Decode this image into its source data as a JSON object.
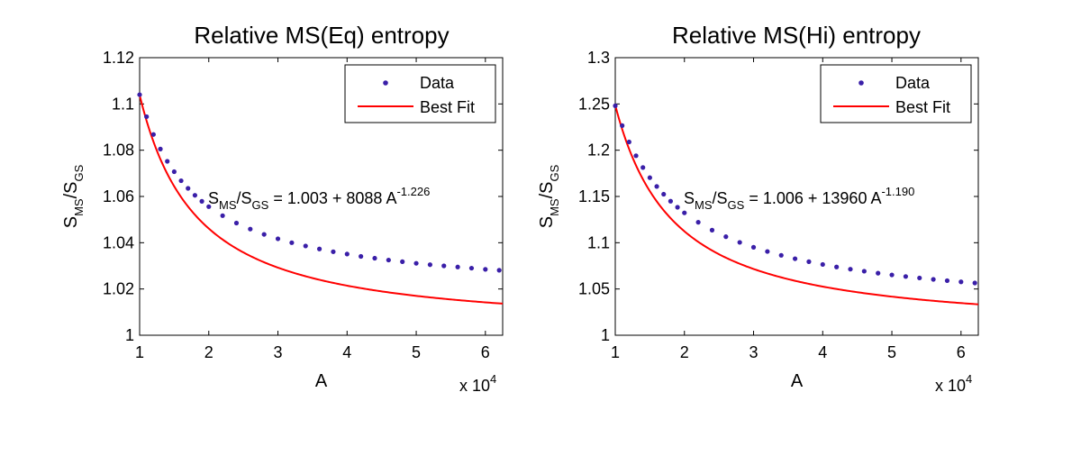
{
  "chart_data": [
    {
      "type": "scatter",
      "title": "Relative MS(Eq) entropy",
      "xlabel": "A",
      "ylabel": {
        "main": "S",
        "sub1": "MS",
        "slash": "/S",
        "sub2": "GS"
      },
      "x_multiplier_label": {
        "base": "x 10",
        "exp": "4"
      },
      "xlim": [
        1,
        6.25
      ],
      "ylim": [
        1,
        1.12
      ],
      "xticks": [
        1,
        2,
        3,
        4,
        5,
        6
      ],
      "xtick_labels": [
        "1",
        "2",
        "3",
        "4",
        "5",
        "6"
      ],
      "yticks": [
        1,
        1.02,
        1.04,
        1.06,
        1.08,
        1.1,
        1.12
      ],
      "ytick_labels": [
        "1",
        "1.02",
        "1.04",
        "1.06",
        "1.08",
        "1.1",
        "1.12"
      ],
      "legend": {
        "position": "top-right",
        "entries": [
          "Data",
          "Best Fit"
        ]
      },
      "annotation": {
        "lhs_s1": "S",
        "lhs_sub1": "MS",
        "lhs_s2": "/S",
        "lhs_sub2": "GS",
        "rhs": " = 1.003 + 8088 A",
        "exp": "-1.226"
      },
      "fit": {
        "c": 1.003,
        "k": 8088,
        "p": -1.226
      },
      "series": [
        {
          "name": "Data",
          "style": "markers",
          "color": "#3a1fa8",
          "x": [
            1.0,
            1.1,
            1.2,
            1.3,
            1.4,
            1.5,
            1.6,
            1.7,
            1.8,
            1.9,
            2.0,
            2.2,
            2.4,
            2.6,
            2.8,
            3.0,
            3.2,
            3.4,
            3.6,
            3.8,
            4.0,
            4.2,
            4.4,
            4.6,
            4.8,
            5.0,
            5.2,
            5.4,
            5.6,
            5.8,
            6.0,
            6.2
          ],
          "y": [
            1.104,
            1.0945,
            1.0868,
            1.0805,
            1.0752,
            1.0707,
            1.0668,
            1.0635,
            1.0605,
            1.0579,
            1.0556,
            1.0517,
            1.0485,
            1.0459,
            1.0436,
            1.0417,
            1.04,
            1.0386,
            1.0373,
            1.0361,
            1.0351,
            1.0341,
            1.0333,
            1.0325,
            1.0318,
            1.0311,
            1.0305,
            1.03,
            1.0295,
            1.029,
            1.0285,
            1.0281
          ]
        },
        {
          "name": "Best Fit",
          "style": "line",
          "color": "#ff0000"
        }
      ]
    },
    {
      "type": "scatter",
      "title": "Relative MS(Hi) entropy",
      "xlabel": "A",
      "ylabel": {
        "main": "S",
        "sub1": "MS",
        "slash": "/S",
        "sub2": "GS"
      },
      "x_multiplier_label": {
        "base": "x 10",
        "exp": "4"
      },
      "xlim": [
        1,
        6.25
      ],
      "ylim": [
        1,
        1.3
      ],
      "xticks": [
        1,
        2,
        3,
        4,
        5,
        6
      ],
      "xtick_labels": [
        "1",
        "2",
        "3",
        "4",
        "5",
        "6"
      ],
      "yticks": [
        1,
        1.05,
        1.1,
        1.15,
        1.2,
        1.25,
        1.3
      ],
      "ytick_labels": [
        "1",
        "1.05",
        "1.1",
        "1.15",
        "1.2",
        "1.25",
        "1.3"
      ],
      "legend": {
        "position": "top-right",
        "entries": [
          "Data",
          "Best Fit"
        ]
      },
      "annotation": {
        "lhs_s1": "S",
        "lhs_sub1": "MS",
        "lhs_s2": "/S",
        "lhs_sub2": "GS",
        "rhs": " = 1.006 + 13960 A",
        "exp": "-1.190"
      },
      "fit": {
        "c": 1.006,
        "k": 13960,
        "p": -1.19
      },
      "series": [
        {
          "name": "Data",
          "style": "markers",
          "color": "#3a1fa8",
          "x": [
            1.0,
            1.1,
            1.2,
            1.3,
            1.4,
            1.5,
            1.6,
            1.7,
            1.8,
            1.9,
            2.0,
            2.2,
            2.4,
            2.6,
            2.8,
            3.0,
            3.2,
            3.4,
            3.6,
            3.8,
            4.0,
            4.2,
            4.4,
            4.6,
            4.8,
            5.0,
            5.2,
            5.4,
            5.6,
            5.8,
            6.0,
            6.2
          ],
          "y": [
            1.248,
            1.2266,
            1.2089,
            1.194,
            1.1813,
            1.1703,
            1.1608,
            1.1524,
            1.1449,
            1.1383,
            1.1323,
            1.1221,
            1.1136,
            1.1065,
            1.1004,
            1.0951,
            1.0905,
            1.0864,
            1.0827,
            1.0795,
            1.0765,
            1.0738,
            1.0714,
            1.0692,
            1.0671,
            1.0652,
            1.0635,
            1.0619,
            1.0604,
            1.059,
            1.0577,
            1.0565
          ]
        },
        {
          "name": "Best Fit",
          "style": "line",
          "color": "#ff0000"
        }
      ]
    }
  ]
}
